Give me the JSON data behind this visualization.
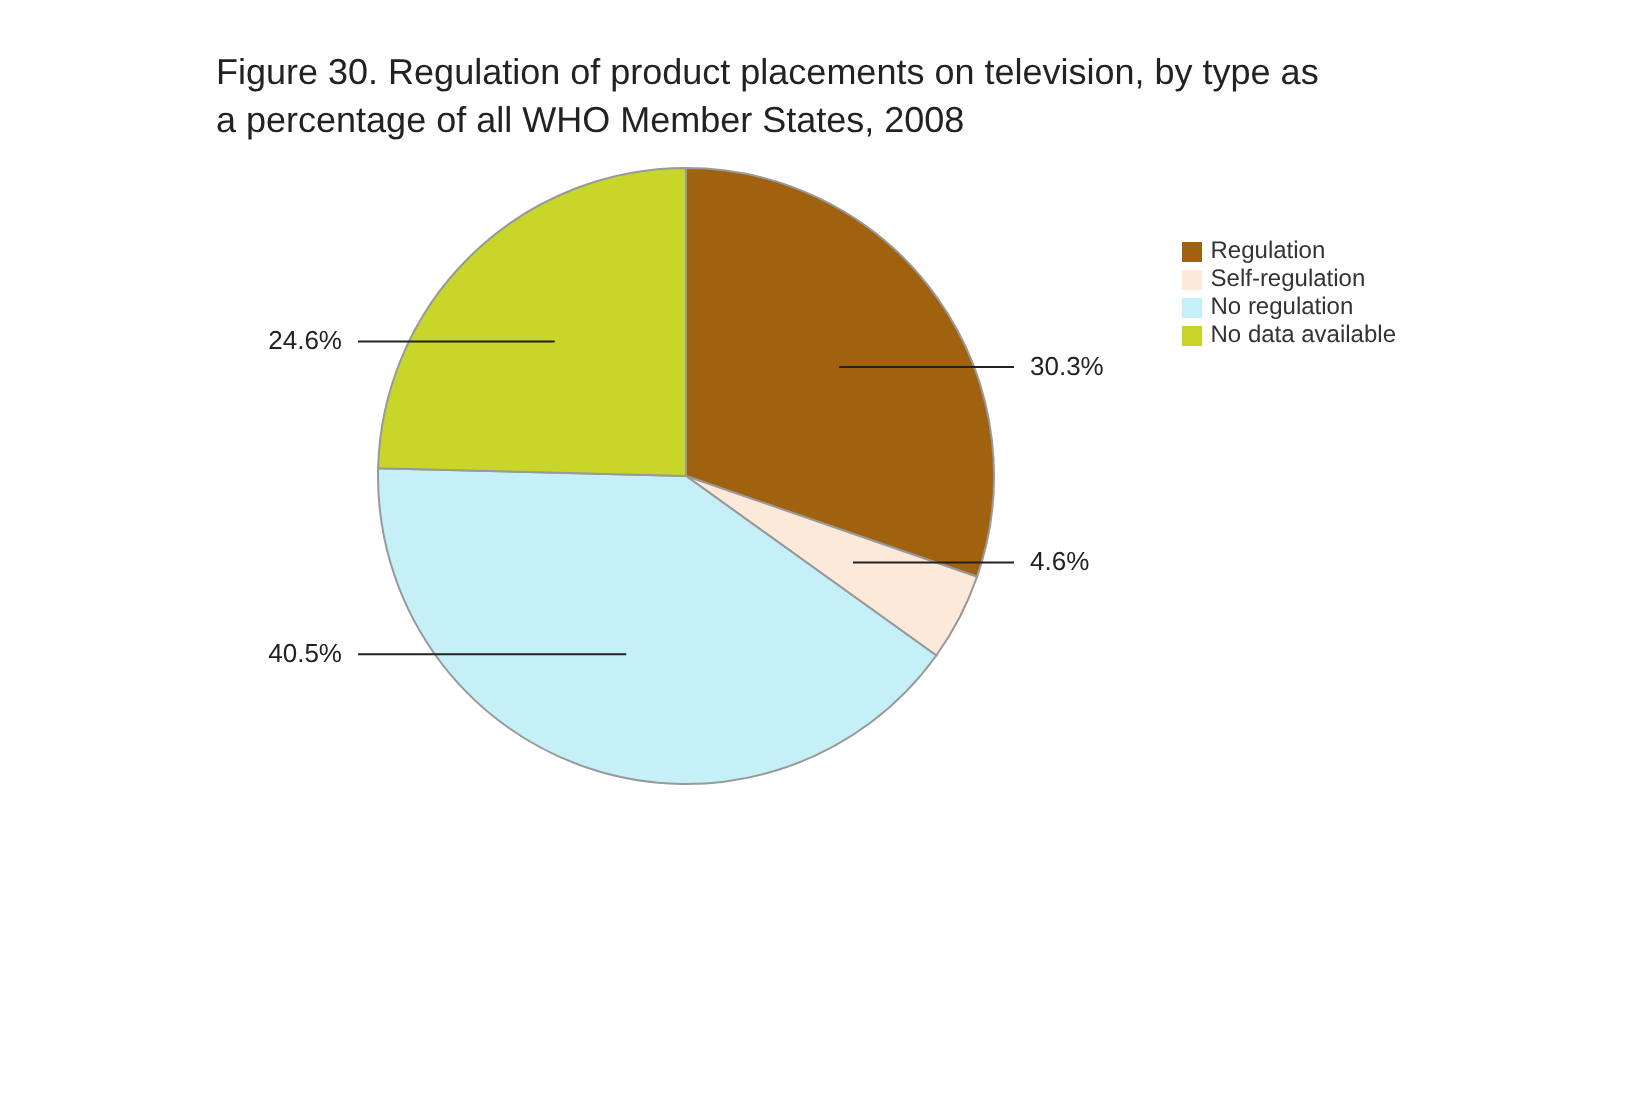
{
  "chart_data": {
    "type": "pie",
    "title": "Figure 30. Regulation of product placements on television, by type as a percentage of all WHO Member States, 2008",
    "categories": [
      "Regulation",
      "Self-regulation",
      "No regulation",
      "No data available"
    ],
    "values": [
      30.3,
      4.6,
      40.5,
      24.6
    ],
    "colors": [
      "#a0620f",
      "#fde9d9",
      "#c5f0f7",
      "#c8d62a"
    ],
    "value_labels": [
      "30.3%",
      "4.6%",
      "40.5%",
      "24.6%"
    ],
    "legend": "right"
  }
}
